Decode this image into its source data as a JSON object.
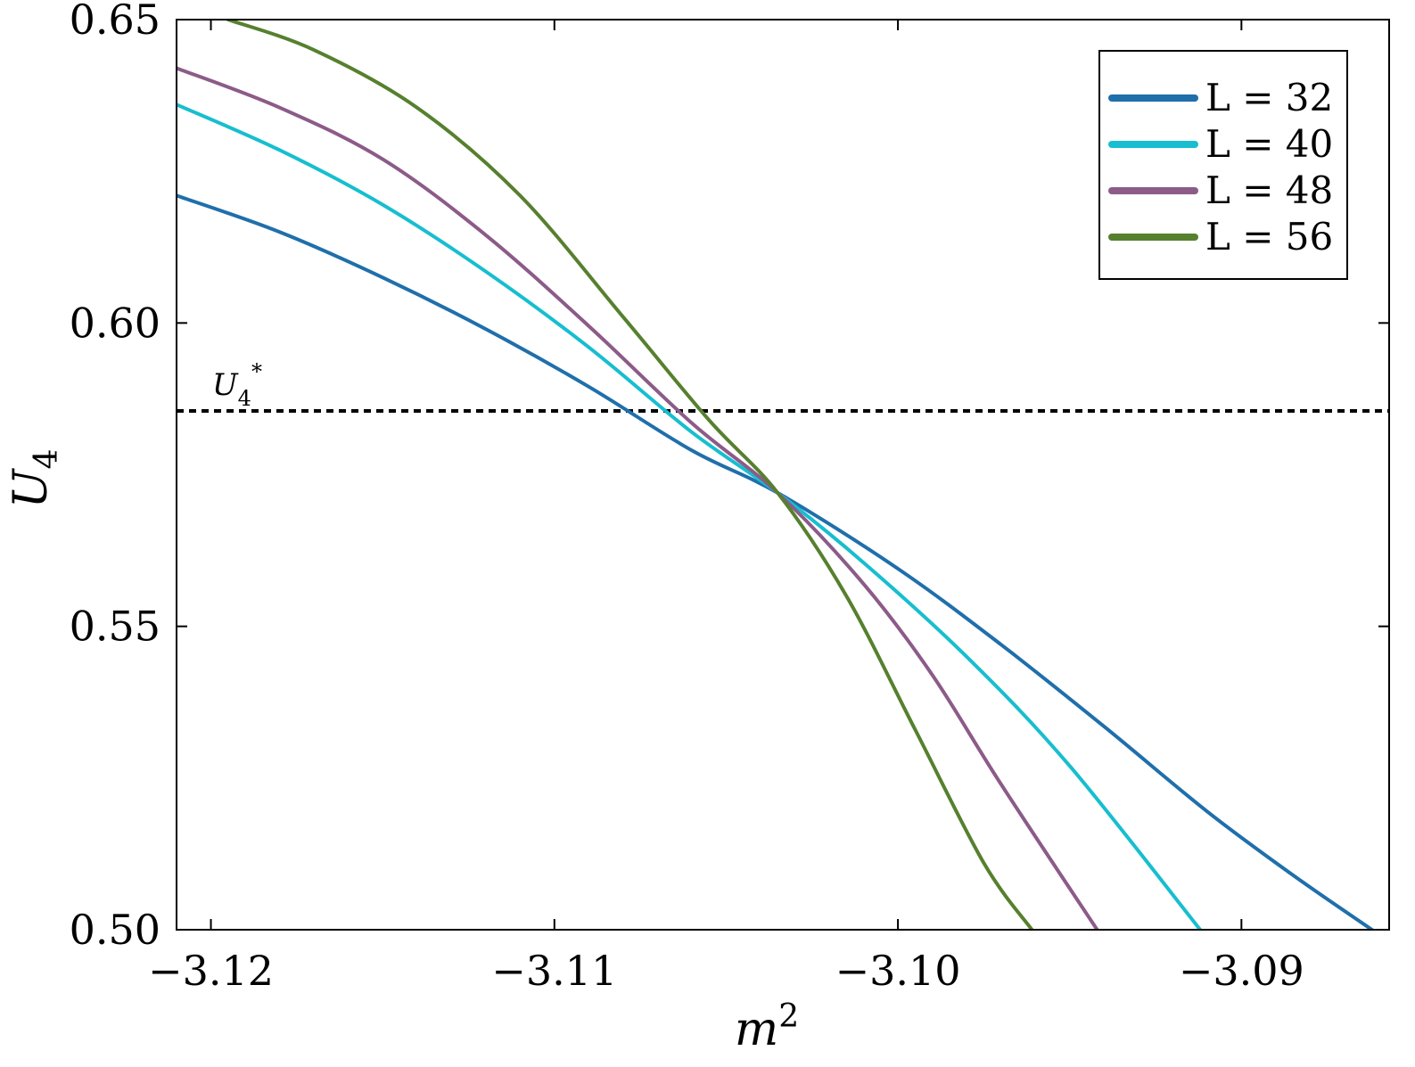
{
  "chart_data": {
    "type": "line",
    "xlabel": "m",
    "xlabel_superscript": "2",
    "ylabel": "U",
    "ylabel_subscript": "4",
    "xlim": [
      -3.121,
      -3.0857
    ],
    "ylim": [
      0.5,
      0.65
    ],
    "xticks": [
      {
        "value": -3.12,
        "label": "−3.12"
      },
      {
        "value": -3.11,
        "label": "−3.11"
      },
      {
        "value": -3.1,
        "label": "−3.10"
      },
      {
        "value": -3.09,
        "label": "−3.09"
      }
    ],
    "yticks": [
      {
        "value": 0.5,
        "label": "0.50"
      },
      {
        "value": 0.55,
        "label": "0.55"
      },
      {
        "value": 0.6,
        "label": "0.60"
      },
      {
        "value": 0.65,
        "label": "0.65"
      }
    ],
    "grid": false,
    "legend_position": "top-right",
    "series": [
      {
        "name": "L = 32",
        "color": "#1f6fab",
        "x": [
          -3.121,
          -3.118,
          -3.115,
          -3.112,
          -3.109,
          -3.106,
          -3.1035,
          -3.1,
          -3.097,
          -3.094,
          -3.091,
          -3.0885,
          -3.0862
        ],
        "y": [
          0.621,
          0.615,
          0.6075,
          0.599,
          0.5895,
          0.579,
          0.572,
          0.5595,
          0.547,
          0.5335,
          0.5195,
          0.509,
          0.5
        ]
      },
      {
        "name": "L = 40",
        "color": "#17becf",
        "x": [
          -3.121,
          -3.118,
          -3.115,
          -3.112,
          -3.109,
          -3.106,
          -3.1035,
          -3.101,
          -3.098,
          -3.095,
          -3.0912
        ],
        "y": [
          0.636,
          0.6285,
          0.6195,
          0.6085,
          0.596,
          0.582,
          0.572,
          0.5605,
          0.545,
          0.527,
          0.5
        ]
      },
      {
        "name": "L = 48",
        "color": "#8c5b88",
        "x": [
          -3.121,
          -3.118,
          -3.115,
          -3.112,
          -3.109,
          -3.106,
          -3.1035,
          -3.101,
          -3.099,
          -3.097,
          -3.0942
        ],
        "y": [
          0.642,
          0.6355,
          0.627,
          0.6145,
          0.5995,
          0.5835,
          0.572,
          0.557,
          0.542,
          0.524,
          0.5
        ]
      },
      {
        "name": "L = 56",
        "color": "#56802e",
        "x": [
          -3.1195,
          -3.117,
          -3.114,
          -3.111,
          -3.108,
          -3.1055,
          -3.1035,
          -3.1015,
          -3.0995,
          -3.0975,
          -3.0961
        ],
        "y": [
          0.65,
          0.645,
          0.6355,
          0.621,
          0.601,
          0.584,
          0.572,
          0.555,
          0.533,
          0.511,
          0.5
        ]
      }
    ],
    "reference_line": {
      "label": "U",
      "label_subscript": "4",
      "label_superscript": "*",
      "y": 0.5855,
      "style": "dotted",
      "color": "#000000"
    }
  }
}
